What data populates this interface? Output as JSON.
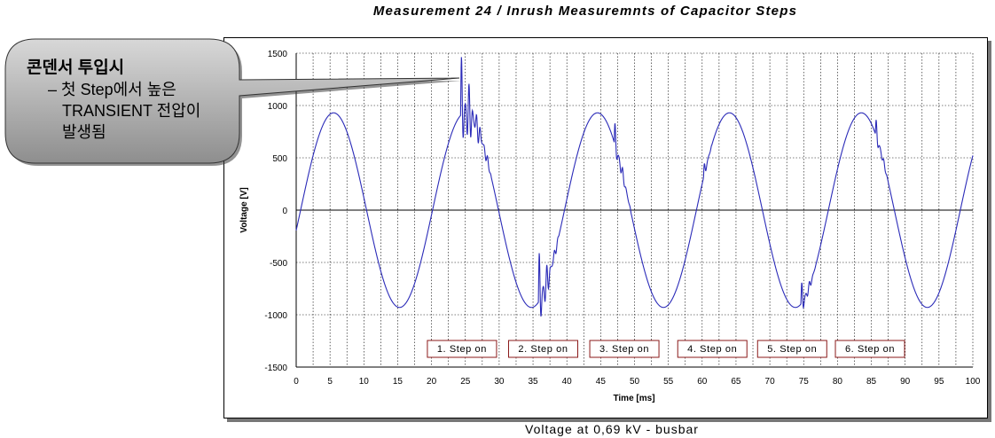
{
  "chart_data": {
    "type": "line",
    "title": "Measurement 24 / Inrush Measuremnts of Capacitor Steps",
    "caption": "Voltage  at 0,69 kV - busbar",
    "xlabel": "Time [ms]",
    "ylabel": "Voltage [V]",
    "xlim": [
      0,
      100
    ],
    "ylim": [
      -1500,
      1500
    ],
    "x_ticks": [
      "0",
      "5",
      "10",
      "15",
      "20",
      "25",
      "30",
      "35",
      "40",
      "45",
      "50",
      "55",
      "60",
      "65",
      "70",
      "75",
      "80",
      "85",
      "90",
      "95",
      "100"
    ],
    "y_ticks": [
      "1500",
      "1000",
      "500",
      "0",
      "-500",
      "-1000",
      "-1500"
    ],
    "grid": true,
    "series": [
      {
        "color": "#2b2bb8",
        "waveform": {
          "amplitude": 930,
          "period_ms": 19.5,
          "zero_crossing_ms": 0.65
        },
        "transients": [
          {
            "t": 24.3,
            "duration": 4.5,
            "amplitude": 650
          },
          {
            "t": 35.8,
            "duration": 3.0,
            "amplitude": 560
          },
          {
            "t": 47.0,
            "duration": 2.5,
            "amplitude": 260
          },
          {
            "t": 60.2,
            "duration": 1.2,
            "amplitude": 150
          },
          {
            "t": 74.6,
            "duration": 2.2,
            "amplitude": 250
          },
          {
            "t": 85.6,
            "duration": 2.0,
            "amplitude": 200
          }
        ]
      }
    ],
    "annotations": [
      {
        "label": "1. Step  on",
        "x": 24.5
      },
      {
        "label": "2. Step  on",
        "x": 36.5
      },
      {
        "label": "3. Step  on",
        "x": 48.5
      },
      {
        "label": "4. Step  on",
        "x": 61.5
      },
      {
        "label": "5. Step  on",
        "x": 73.3
      },
      {
        "label": "6. Step  on",
        "x": 84.8
      }
    ]
  },
  "callout": {
    "heading": "콘덴서 투입시",
    "line1": "– 첫 Step에서 높은",
    "line2": "TRANSIENT 전압이",
    "line3": "발생됨"
  }
}
